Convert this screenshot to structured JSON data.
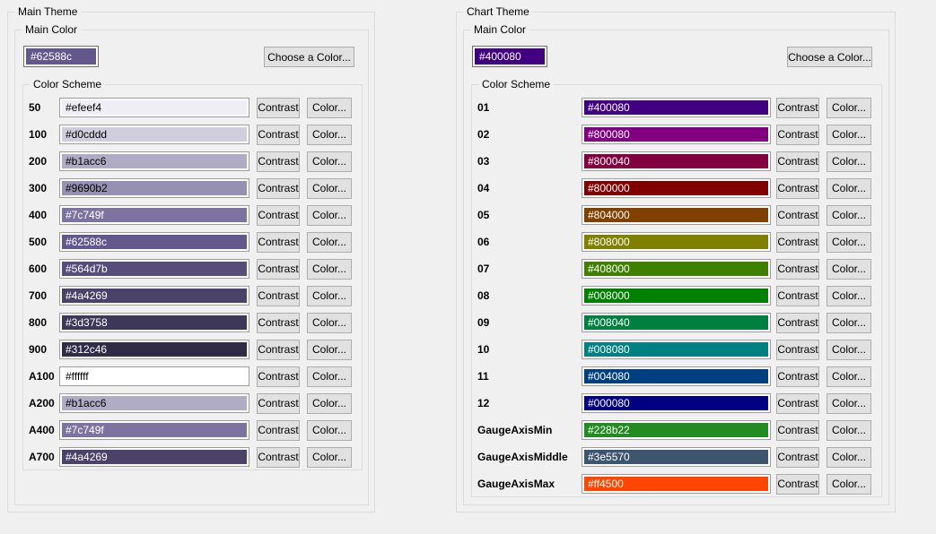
{
  "window": {
    "background": "#f0f0f0",
    "groupbox_border": "#dcdcdc",
    "button_face": "#e1e1e1",
    "button_border": "#adadad"
  },
  "panels": [
    {
      "title": "Main Theme",
      "main_color": {
        "label": "Main Color",
        "value": "#62588c",
        "choose_button": "Choose a Color..."
      },
      "color_scheme": {
        "label": "Color Scheme",
        "contrast_button": "Contrast",
        "color_button": "Color...",
        "rows": [
          {
            "name": "50",
            "value": "#efeef4"
          },
          {
            "name": "100",
            "value": "#d0cddd"
          },
          {
            "name": "200",
            "value": "#b1acc6"
          },
          {
            "name": "300",
            "value": "#9690b2"
          },
          {
            "name": "400",
            "value": "#7c749f"
          },
          {
            "name": "500",
            "value": "#62588c"
          },
          {
            "name": "600",
            "value": "#564d7b"
          },
          {
            "name": "700",
            "value": "#4a4269"
          },
          {
            "name": "800",
            "value": "#3d3758"
          },
          {
            "name": "900",
            "value": "#312c46"
          },
          {
            "name": "A100",
            "value": "#ffffff"
          },
          {
            "name": "A200",
            "value": "#b1acc6"
          },
          {
            "name": "A400",
            "value": "#7c749f"
          },
          {
            "name": "A700",
            "value": "#4a4269"
          }
        ]
      }
    },
    {
      "title": "Chart Theme",
      "main_color": {
        "label": "Main Color",
        "value": "#400080",
        "choose_button": "Choose a Color..."
      },
      "color_scheme": {
        "label": "Color Scheme",
        "contrast_button": "Contrast",
        "color_button": "Color...",
        "rows": [
          {
            "name": "01",
            "value": "#400080"
          },
          {
            "name": "02",
            "value": "#800080"
          },
          {
            "name": "03",
            "value": "#800040"
          },
          {
            "name": "04",
            "value": "#800000"
          },
          {
            "name": "05",
            "value": "#804000"
          },
          {
            "name": "06",
            "value": "#808000"
          },
          {
            "name": "07",
            "value": "#408000"
          },
          {
            "name": "08",
            "value": "#008000"
          },
          {
            "name": "09",
            "value": "#008040"
          },
          {
            "name": "10",
            "value": "#008080"
          },
          {
            "name": "11",
            "value": "#004080"
          },
          {
            "name": "12",
            "value": "#000080"
          },
          {
            "name": "GaugeAxisMin",
            "value": "#228b22"
          },
          {
            "name": "GaugeAxisMiddle",
            "value": "#3e5570"
          },
          {
            "name": "GaugeAxisMax",
            "value": "#ff4500"
          }
        ]
      }
    }
  ]
}
